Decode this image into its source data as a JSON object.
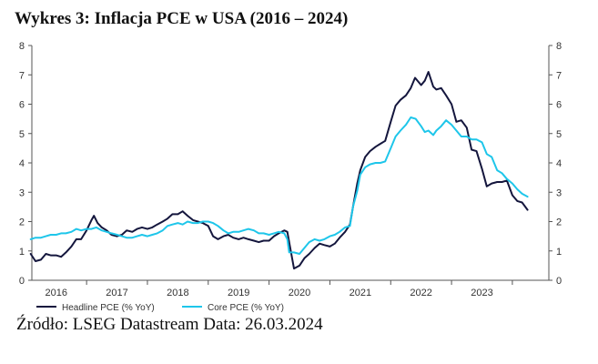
{
  "title": "Wykres 3: Inflacja PCE w USA (2016 – 2024)",
  "source": "Źródło: LSEG Datastream Data: 26.03.2024",
  "chart_data": {
    "type": "line",
    "title": "Wykres 3: Inflacja PCE w USA (2016 – 2024)",
    "xlabel": "",
    "ylabel": "",
    "xlim": [
      2015.6,
      2024.1
    ],
    "ylim": [
      0,
      8
    ],
    "y_ticks": [
      0,
      1,
      2,
      3,
      4,
      5,
      6,
      7,
      8
    ],
    "x_ticks": [
      {
        "label": "2016",
        "value": 2016.0
      },
      {
        "label": "2017",
        "value": 2017.0
      },
      {
        "label": "2018",
        "value": 2018.0
      },
      {
        "label": "2019",
        "value": 2019.0
      },
      {
        "label": "2020",
        "value": 2020.0
      },
      {
        "label": "2021",
        "value": 2021.0
      },
      {
        "label": "2022",
        "value": 2022.0
      },
      {
        "label": "2023",
        "value": 2023.0
      }
    ],
    "grid": false,
    "legend_position": "bottom-left",
    "series": [
      {
        "name": "Headline PCE (% YoY)",
        "color": "#14163d",
        "points": [
          [
            2015.58,
            0.9
          ],
          [
            2015.66,
            0.65
          ],
          [
            2015.75,
            0.7
          ],
          [
            2015.83,
            0.9
          ],
          [
            2015.91,
            0.85
          ],
          [
            2016.0,
            0.85
          ],
          [
            2016.08,
            0.8
          ],
          [
            2016.16,
            0.95
          ],
          [
            2016.25,
            1.15
          ],
          [
            2016.33,
            1.4
          ],
          [
            2016.41,
            1.4
          ],
          [
            2016.5,
            1.7
          ],
          [
            2016.58,
            2.05
          ],
          [
            2016.62,
            2.2
          ],
          [
            2016.68,
            1.95
          ],
          [
            2016.75,
            1.8
          ],
          [
            2016.83,
            1.7
          ],
          [
            2016.91,
            1.55
          ],
          [
            2017.0,
            1.5
          ],
          [
            2017.08,
            1.55
          ],
          [
            2017.16,
            1.7
          ],
          [
            2017.25,
            1.65
          ],
          [
            2017.33,
            1.75
          ],
          [
            2017.41,
            1.8
          ],
          [
            2017.5,
            1.75
          ],
          [
            2017.58,
            1.8
          ],
          [
            2017.66,
            1.9
          ],
          [
            2017.75,
            2.0
          ],
          [
            2017.83,
            2.1
          ],
          [
            2017.91,
            2.25
          ],
          [
            2018.0,
            2.25
          ],
          [
            2018.08,
            2.35
          ],
          [
            2018.16,
            2.2
          ],
          [
            2018.25,
            2.05
          ],
          [
            2018.33,
            2.0
          ],
          [
            2018.41,
            1.95
          ],
          [
            2018.5,
            1.85
          ],
          [
            2018.58,
            1.5
          ],
          [
            2018.66,
            1.4
          ],
          [
            2018.75,
            1.5
          ],
          [
            2018.83,
            1.55
          ],
          [
            2018.91,
            1.45
          ],
          [
            2019.0,
            1.4
          ],
          [
            2019.08,
            1.45
          ],
          [
            2019.16,
            1.4
          ],
          [
            2019.25,
            1.35
          ],
          [
            2019.33,
            1.3
          ],
          [
            2019.41,
            1.35
          ],
          [
            2019.5,
            1.35
          ],
          [
            2019.58,
            1.5
          ],
          [
            2019.66,
            1.6
          ],
          [
            2019.75,
            1.7
          ],
          [
            2019.8,
            1.65
          ],
          [
            2019.83,
            1.3
          ],
          [
            2019.91,
            0.4
          ],
          [
            2020.0,
            0.5
          ],
          [
            2020.08,
            0.75
          ],
          [
            2020.16,
            0.9
          ],
          [
            2020.25,
            1.1
          ],
          [
            2020.33,
            1.25
          ],
          [
            2020.41,
            1.2
          ],
          [
            2020.5,
            1.15
          ],
          [
            2020.58,
            1.25
          ],
          [
            2020.66,
            1.45
          ],
          [
            2020.75,
            1.65
          ],
          [
            2020.83,
            1.9
          ],
          [
            2020.88,
            2.5
          ],
          [
            2020.95,
            3.3
          ],
          [
            2021.0,
            3.75
          ],
          [
            2021.08,
            4.2
          ],
          [
            2021.16,
            4.4
          ],
          [
            2021.25,
            4.55
          ],
          [
            2021.33,
            4.65
          ],
          [
            2021.41,
            4.75
          ],
          [
            2021.5,
            5.4
          ],
          [
            2021.58,
            5.95
          ],
          [
            2021.66,
            6.15
          ],
          [
            2021.75,
            6.3
          ],
          [
            2021.83,
            6.55
          ],
          [
            2021.9,
            6.9
          ],
          [
            2022.0,
            6.65
          ],
          [
            2022.06,
            6.8
          ],
          [
            2022.12,
            7.1
          ],
          [
            2022.2,
            6.6
          ],
          [
            2022.25,
            6.5
          ],
          [
            2022.33,
            6.55
          ],
          [
            2022.41,
            6.3
          ],
          [
            2022.5,
            6.0
          ],
          [
            2022.58,
            5.4
          ],
          [
            2022.66,
            5.45
          ],
          [
            2022.75,
            5.2
          ],
          [
            2022.83,
            4.45
          ],
          [
            2022.91,
            4.4
          ],
          [
            2023.0,
            3.8
          ],
          [
            2023.08,
            3.2
          ],
          [
            2023.16,
            3.3
          ],
          [
            2023.25,
            3.35
          ],
          [
            2023.33,
            3.35
          ],
          [
            2023.41,
            3.4
          ],
          [
            2023.5,
            2.9
          ],
          [
            2023.58,
            2.7
          ],
          [
            2023.66,
            2.65
          ],
          [
            2023.75,
            2.4
          ]
        ]
      },
      {
        "name": "Core PCE (% YoY)",
        "color": "#1ec6ea",
        "points": [
          [
            2015.58,
            1.4
          ],
          [
            2015.66,
            1.45
          ],
          [
            2015.75,
            1.45
          ],
          [
            2015.83,
            1.5
          ],
          [
            2015.91,
            1.55
          ],
          [
            2016.0,
            1.55
          ],
          [
            2016.08,
            1.6
          ],
          [
            2016.16,
            1.6
          ],
          [
            2016.25,
            1.65
          ],
          [
            2016.33,
            1.75
          ],
          [
            2016.41,
            1.7
          ],
          [
            2016.5,
            1.75
          ],
          [
            2016.58,
            1.75
          ],
          [
            2016.66,
            1.8
          ],
          [
            2016.75,
            1.7
          ],
          [
            2016.83,
            1.65
          ],
          [
            2016.91,
            1.6
          ],
          [
            2017.0,
            1.55
          ],
          [
            2017.08,
            1.5
          ],
          [
            2017.16,
            1.45
          ],
          [
            2017.25,
            1.45
          ],
          [
            2017.33,
            1.5
          ],
          [
            2017.41,
            1.55
          ],
          [
            2017.5,
            1.5
          ],
          [
            2017.58,
            1.55
          ],
          [
            2017.66,
            1.6
          ],
          [
            2017.75,
            1.7
          ],
          [
            2017.83,
            1.85
          ],
          [
            2017.91,
            1.9
          ],
          [
            2018.0,
            1.95
          ],
          [
            2018.08,
            1.9
          ],
          [
            2018.16,
            2.0
          ],
          [
            2018.25,
            1.95
          ],
          [
            2018.33,
            1.95
          ],
          [
            2018.41,
            2.0
          ],
          [
            2018.5,
            2.0
          ],
          [
            2018.58,
            1.95
          ],
          [
            2018.66,
            1.85
          ],
          [
            2018.75,
            1.7
          ],
          [
            2018.83,
            1.6
          ],
          [
            2018.91,
            1.65
          ],
          [
            2019.0,
            1.65
          ],
          [
            2019.08,
            1.7
          ],
          [
            2019.16,
            1.75
          ],
          [
            2019.25,
            1.7
          ],
          [
            2019.33,
            1.6
          ],
          [
            2019.41,
            1.6
          ],
          [
            2019.5,
            1.55
          ],
          [
            2019.58,
            1.6
          ],
          [
            2019.66,
            1.65
          ],
          [
            2019.75,
            1.6
          ],
          [
            2019.8,
            1.4
          ],
          [
            2019.83,
            0.95
          ],
          [
            2019.91,
            0.95
          ],
          [
            2020.0,
            0.9
          ],
          [
            2020.08,
            1.1
          ],
          [
            2020.16,
            1.3
          ],
          [
            2020.25,
            1.4
          ],
          [
            2020.33,
            1.35
          ],
          [
            2020.41,
            1.4
          ],
          [
            2020.5,
            1.5
          ],
          [
            2020.58,
            1.55
          ],
          [
            2020.66,
            1.65
          ],
          [
            2020.75,
            1.8
          ],
          [
            2020.83,
            1.85
          ],
          [
            2020.88,
            2.5
          ],
          [
            2020.95,
            3.05
          ],
          [
            2021.0,
            3.6
          ],
          [
            2021.08,
            3.85
          ],
          [
            2021.16,
            3.95
          ],
          [
            2021.25,
            4.0
          ],
          [
            2021.33,
            4.0
          ],
          [
            2021.41,
            4.05
          ],
          [
            2021.5,
            4.5
          ],
          [
            2021.58,
            4.9
          ],
          [
            2021.66,
            5.1
          ],
          [
            2021.75,
            5.3
          ],
          [
            2021.83,
            5.55
          ],
          [
            2021.91,
            5.5
          ],
          [
            2022.0,
            5.25
          ],
          [
            2022.06,
            5.05
          ],
          [
            2022.12,
            5.1
          ],
          [
            2022.2,
            4.95
          ],
          [
            2022.25,
            5.1
          ],
          [
            2022.33,
            5.25
          ],
          [
            2022.41,
            5.45
          ],
          [
            2022.5,
            5.3
          ],
          [
            2022.58,
            5.1
          ],
          [
            2022.66,
            4.9
          ],
          [
            2022.75,
            4.9
          ],
          [
            2022.83,
            4.8
          ],
          [
            2022.91,
            4.8
          ],
          [
            2023.0,
            4.7
          ],
          [
            2023.08,
            4.3
          ],
          [
            2023.16,
            4.2
          ],
          [
            2023.25,
            3.75
          ],
          [
            2023.33,
            3.65
          ],
          [
            2023.41,
            3.45
          ],
          [
            2023.5,
            3.3
          ],
          [
            2023.58,
            3.1
          ],
          [
            2023.66,
            2.95
          ],
          [
            2023.75,
            2.85
          ]
        ]
      }
    ]
  }
}
